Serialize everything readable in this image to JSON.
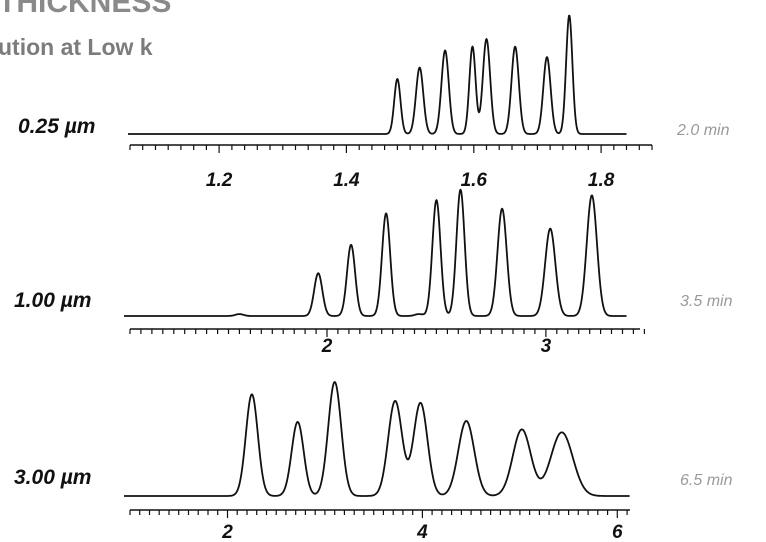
{
  "header": {
    "title": "THICKNESS",
    "subtitle": "ution at Low k"
  },
  "chart_data": [
    {
      "type": "line",
      "film_label": "0.25 µm",
      "run_time_label": "2.0 min",
      "xlim": [
        1.06,
        1.88
      ],
      "xticks": [
        1.2,
        1.4,
        1.6,
        1.8
      ],
      "xtick_labels": [
        "1.2",
        "1.4",
        "1.6",
        "1.8"
      ],
      "minor_step": 0.02,
      "signal_start": 1.06,
      "signal_end": 1.84,
      "peaks": [
        {
          "x": 1.48,
          "height": 0.58,
          "width": 0.006
        },
        {
          "x": 1.515,
          "height": 0.7,
          "width": 0.007
        },
        {
          "x": 1.555,
          "height": 0.88,
          "width": 0.007
        },
        {
          "x": 1.598,
          "height": 0.92,
          "width": 0.006
        },
        {
          "x": 1.62,
          "height": 1.0,
          "width": 0.007
        },
        {
          "x": 1.665,
          "height": 0.92,
          "width": 0.007
        },
        {
          "x": 1.715,
          "height": 0.81,
          "width": 0.007
        },
        {
          "x": 1.75,
          "height": 1.25,
          "width": 0.006
        }
      ]
    },
    {
      "type": "line",
      "film_label": "1.00 µm",
      "run_time_label": "3.5 min",
      "xlim": [
        1.1,
        3.43
      ],
      "xticks": [
        2,
        3
      ],
      "xtick_labels": [
        "2",
        "3"
      ],
      "minor_step": 0.05,
      "signal_start": 1.1,
      "signal_end": 3.37,
      "peaks": [
        {
          "x": 1.6,
          "height": 0.02,
          "width": 0.008
        },
        {
          "x": 1.96,
          "height": 0.45,
          "width": 0.008
        },
        {
          "x": 2.11,
          "height": 0.75,
          "width": 0.008
        },
        {
          "x": 2.27,
          "height": 1.08,
          "width": 0.008
        },
        {
          "x": 2.42,
          "height": 0.02,
          "width": 0.008
        },
        {
          "x": 2.5,
          "height": 1.22,
          "width": 0.008
        },
        {
          "x": 2.61,
          "height": 1.33,
          "width": 0.008
        },
        {
          "x": 2.8,
          "height": 1.13,
          "width": 0.009
        },
        {
          "x": 3.02,
          "height": 0.92,
          "width": 0.01
        },
        {
          "x": 3.21,
          "height": 1.27,
          "width": 0.01
        }
      ]
    },
    {
      "type": "line",
      "film_label": "3.00 µm",
      "run_time_label": "6.5 min",
      "xlim": [
        1.0,
        6.13
      ],
      "xticks": [
        2,
        4,
        6
      ],
      "xtick_labels": [
        "2",
        "4",
        "6"
      ],
      "minor_step": 0.1,
      "signal_start": 1.17,
      "signal_end": 6.13,
      "peaks": [
        {
          "x": 2.25,
          "height": 1.07,
          "width": 0.012
        },
        {
          "x": 2.72,
          "height": 0.78,
          "width": 0.012
        },
        {
          "x": 3.1,
          "height": 1.2,
          "width": 0.013
        },
        {
          "x": 3.72,
          "height": 1.0,
          "width": 0.014
        },
        {
          "x": 3.98,
          "height": 0.98,
          "width": 0.014
        },
        {
          "x": 4.45,
          "height": 0.79,
          "width": 0.016
        },
        {
          "x": 5.02,
          "height": 0.7,
          "width": 0.018
        },
        {
          "x": 5.43,
          "height": 0.67,
          "width": 0.022
        }
      ]
    }
  ]
}
